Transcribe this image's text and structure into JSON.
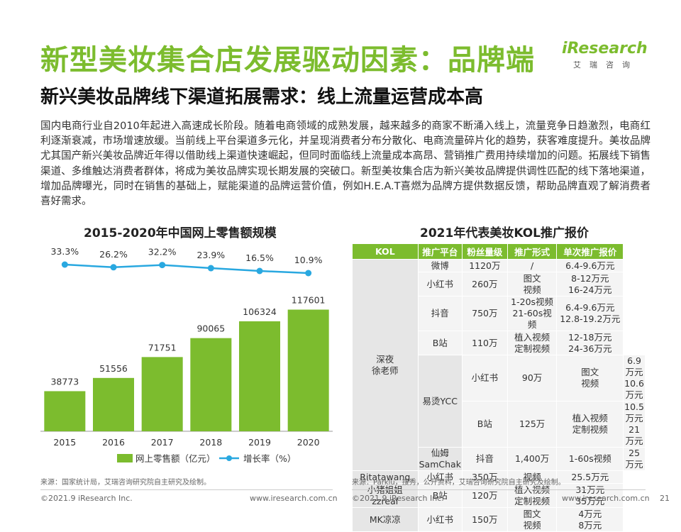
{
  "header": {
    "title": "新型美妆集合店发展驱动因素：品牌端",
    "subtitle": "新兴美妆品牌线下渠道拓展需求：线上流量运营成本高",
    "logo_text": "iResearch",
    "logo_cn": "艾瑞咨询"
  },
  "paragraph": "国内电商行业自2010年起进入高速成长阶段。随着电商领域的成熟发展，越来越多的商家不断涌入线上，流量竞争日趋激烈，电商红利逐渐衰减，市场增速放缓。当前线上平台渠道多元化，并呈现消费者分布分散化、电商流量碎片化的趋势，获客难度提升。美妆品牌尤其国产新兴美妆品牌近年得以借助线上渠道快速崛起，但同时面临线上流量成本高昂、营销推广费用持续增加的问题。拓展线下销售渠道、多维触达消费者群体，将成为美妆品牌实现长期发展的突破口。新型美妆集合店为新兴美妆品牌提供调性匹配的线下落地渠道，增加品牌曝光，同时在销售的基础上，赋能渠道的品牌运营价值，例如H.E.A.T喜燃为品牌方提供数据反馈，帮助品牌直观了解消费者喜好需求。",
  "chart_data": {
    "type": "bar",
    "title": "2015-2020年中国网上零售额规模",
    "categories": [
      "2015",
      "2016",
      "2017",
      "2018",
      "2019",
      "2020"
    ],
    "series": [
      {
        "name": "网上零售额（亿元）",
        "type": "bar",
        "color": "#7cbc2e",
        "values": [
          38773,
          51556,
          71751,
          90065,
          106324,
          117601
        ]
      },
      {
        "name": "增长率（%）",
        "type": "line",
        "color": "#29a8e0",
        "values": [
          33.3,
          26.2,
          32.2,
          23.9,
          16.5,
          10.9
        ],
        "labels": [
          "33.3%",
          "26.2%",
          "32.2%",
          "23.9%",
          "16.5%",
          "10.9%"
        ]
      }
    ],
    "grid": false,
    "legend": "bottom"
  },
  "table": {
    "title": "2021年代表美妆KOL推广报价",
    "headers": [
      "KOL",
      "推广平台",
      "粉丝量级",
      "推广形式",
      "单次推广报价"
    ],
    "kol1": {
      "name": "深夜\n徐老师",
      "weibo": [
        "微博",
        "1120万",
        "/",
        "6.4-9.6万元"
      ],
      "xhs": [
        "小红书",
        "260万",
        "图文",
        "8-12万元",
        "视频",
        "16-24万元"
      ],
      "dy": [
        "抖音",
        "750万",
        "1-20s视频",
        "6.4-9.6万元",
        "21-60s视频",
        "12.8-19.2万元"
      ],
      "bz": [
        "B站",
        "110万",
        "植入视频",
        "12-18万元",
        "定制视频",
        "24-36万元"
      ]
    },
    "kol2": {
      "name": "易烫YCC",
      "xhs": [
        "小红书",
        "90万",
        "图文",
        "6.9万元",
        "视频",
        "10.6万元"
      ],
      "bz": [
        "B站",
        "125万",
        "植入视频",
        "10.5万元",
        "定制视频",
        "21万元"
      ]
    },
    "kol3": [
      "仙姆SamChak",
      "抖音",
      "1,400万",
      "1-60s视频",
      "25万元"
    ],
    "kol4": [
      "Ritatawang",
      "小红书",
      "350万",
      "视频",
      "25.5万元"
    ],
    "kol5": {
      "name": "小猪姐姐\nzzreal",
      "platform": "B站",
      "fans": "120万",
      "f1": "植入视频",
      "p1": "31万元",
      "f2": "定制视频",
      "p2": "35万元"
    },
    "kol6": {
      "name": "MK凉凉",
      "platform": "小红书",
      "fans": "150万",
      "f1": "图文",
      "p1": "4万元",
      "f2": "视频",
      "p2": "8万元"
    }
  },
  "sources": {
    "left": "来源：国家统计局，艾瑞咨询研究院自主研究及绘制。",
    "right": "来源：Parklu，搜秀，公开资料，艾瑞咨询研究院自主研究及绘制。"
  },
  "footer": {
    "copyright_left": "©2021.9 iResearch Inc.",
    "url_left": "www.iresearch.com.cn",
    "copyright_right": "©2021.9 iResearch Inc.",
    "url_right": "www.iresearch.com.cn",
    "page": "21"
  }
}
